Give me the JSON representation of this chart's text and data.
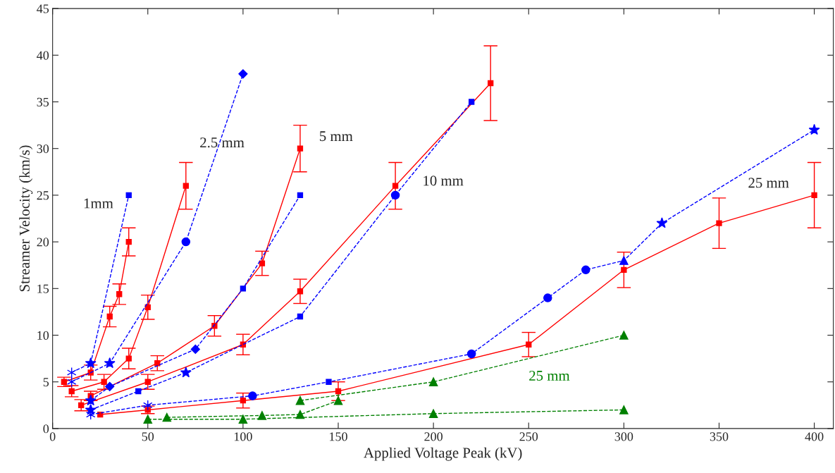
{
  "chart_data": {
    "type": "line",
    "xlabel": "Applied Voltage Peak (kV)",
    "ylabel": "Streamer Velocity (km/s)",
    "xlim": [
      0,
      410
    ],
    "ylim": [
      0,
      45
    ],
    "xticks": [
      0,
      50,
      100,
      150,
      200,
      250,
      300,
      350,
      400
    ],
    "yticks": [
      0,
      5,
      10,
      15,
      20,
      25,
      30,
      35,
      40,
      45
    ],
    "grid": false,
    "legend": false,
    "series": [
      {
        "color": "#ff0000",
        "marker": "square",
        "line_style": "solid",
        "x": [
          6,
          20,
          30,
          35,
          40
        ],
        "values": [
          5,
          6,
          12,
          14.4,
          20
        ],
        "errors": [
          0.5,
          0.8,
          1.1,
          1.1,
          1.5
        ]
      },
      {
        "color": "#ff0000",
        "marker": "square",
        "line_style": "solid",
        "x": [
          10,
          27,
          40,
          50,
          70
        ],
        "values": [
          4,
          5,
          7.5,
          13,
          26
        ],
        "errors": [
          0.6,
          0.8,
          1.1,
          1.3,
          2.5
        ]
      },
      {
        "color": "#ff0000",
        "marker": "square",
        "line_style": "solid",
        "x": [
          20,
          55,
          85,
          110,
          130
        ],
        "values": [
          3.5,
          7,
          11,
          17.7,
          30
        ],
        "errors": [
          0.5,
          0.8,
          1.1,
          1.3,
          2.5
        ]
      },
      {
        "color": "#ff0000",
        "marker": "square",
        "line_style": "solid",
        "x": [
          15,
          50,
          100,
          130,
          180,
          230
        ],
        "values": [
          2.5,
          5,
          9,
          14.7,
          26,
          37
        ],
        "errors": [
          0.6,
          0.8,
          1.1,
          1.3,
          2.5,
          4
        ]
      },
      {
        "color": "#ff0000",
        "marker": "square",
        "line_style": "solid",
        "x": [
          25,
          50,
          100,
          150,
          250,
          300,
          350,
          400
        ],
        "values": [
          1.5,
          2,
          3,
          4,
          9,
          17,
          22,
          25
        ],
        "errors": [
          null,
          0.4,
          0.8,
          1,
          1.3,
          1.9,
          2.7,
          3.5
        ]
      },
      {
        "color": "#0000ff",
        "line_style": "dashed",
        "x": [
          10,
          20,
          40
        ],
        "values": [
          6,
          7,
          25
        ]
      },
      {
        "color": "#0000ff",
        "line_style": "dashed",
        "x": [
          10,
          30,
          70,
          100
        ],
        "values": [
          5,
          7,
          20,
          38
        ]
      },
      {
        "color": "#0000ff",
        "line_style": "dashed",
        "x": [
          20,
          30,
          75,
          100,
          130
        ],
        "values": [
          3,
          4.5,
          8.5,
          15,
          25
        ]
      },
      {
        "color": "#0000ff",
        "line_style": "dashed",
        "x": [
          20,
          45,
          70,
          130,
          180,
          220
        ],
        "values": [
          2,
          4,
          6,
          12,
          25,
          35
        ]
      },
      {
        "color": "#0000ff",
        "line_style": "dashed",
        "x": [
          20,
          50,
          105,
          145,
          220,
          260,
          280,
          300,
          320,
          400
        ],
        "values": [
          1.5,
          2.5,
          3.5,
          5,
          8,
          14,
          17,
          18,
          22,
          32
        ]
      },
      {
        "type": "scatter",
        "color": "#0000ff",
        "marker": "cross",
        "x": [
          10,
          10,
          20,
          50
        ],
        "values": [
          6,
          5,
          1.5,
          2.5
        ]
      },
      {
        "type": "scatter",
        "color": "#0000ff",
        "marker": "star",
        "x": [
          20,
          30,
          20,
          20,
          70,
          320,
          400
        ],
        "values": [
          7,
          7,
          3,
          2,
          6,
          22,
          32
        ]
      },
      {
        "type": "scatter",
        "color": "#0000ff",
        "marker": "square",
        "x": [
          40,
          100,
          130,
          45,
          130,
          145,
          220
        ],
        "values": [
          25,
          15,
          25,
          4,
          12,
          5,
          35
        ]
      },
      {
        "type": "scatter",
        "color": "#0000ff",
        "marker": "circle",
        "x": [
          70,
          180,
          105,
          220,
          260,
          280
        ],
        "values": [
          20,
          25,
          3.5,
          8,
          14,
          17
        ]
      },
      {
        "type": "scatter",
        "color": "#0000ff",
        "marker": "diamond",
        "x": [
          100,
          30,
          75
        ],
        "values": [
          38,
          4.5,
          8.5
        ]
      },
      {
        "type": "scatter",
        "color": "#0000ff",
        "marker": "triangle",
        "x": [
          300
        ],
        "values": [
          18
        ]
      },
      {
        "color": "#008000",
        "marker": "triangle",
        "line_style": "dashed",
        "x": [
          60,
          110,
          130,
          150
        ],
        "values": [
          1.2,
          1.4,
          1.5,
          3
        ]
      },
      {
        "name": "25 mm",
        "color": "#008000",
        "marker": "triangle",
        "line_style": "dashed",
        "x": [
          130,
          200,
          300
        ],
        "values": [
          3,
          5,
          10
        ]
      },
      {
        "color": "#008000",
        "marker": "triangle",
        "line_style": "dashed",
        "x": [
          50,
          100,
          200,
          300
        ],
        "values": [
          1,
          1,
          1.6,
          2
        ]
      }
    ],
    "annotations": [
      "1mm",
      "2.5 mm",
      "5 mm",
      "10 mm",
      "25 mm"
    ]
  }
}
